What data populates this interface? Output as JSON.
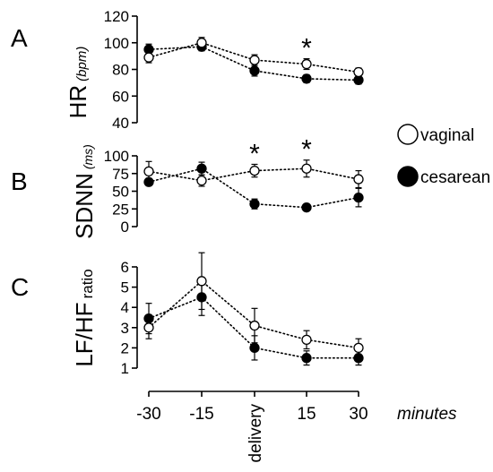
{
  "legend": {
    "entries": [
      {
        "label": "vaginal",
        "fill": "#ffffff"
      },
      {
        "label": "cesarean",
        "fill": "#000000"
      }
    ]
  },
  "x_axis": {
    "categories": [
      "-30",
      "-15",
      "delivery",
      "15",
      "30"
    ],
    "unit_label": "minutes"
  },
  "chart_data": [
    {
      "type": "line",
      "panel_letter": "A",
      "ylabel_main": "HR",
      "ylabel_sub": "(bpm)",
      "ylim": [
        40,
        120
      ],
      "yticks": [
        40,
        60,
        80,
        100,
        120
      ],
      "categories": [
        "-30",
        "-15",
        "delivery",
        "15",
        "30"
      ],
      "series": [
        {
          "name": "vaginal",
          "values": [
            89,
            100,
            87,
            84,
            78
          ],
          "errors": [
            4,
            4,
            4,
            4,
            3
          ]
        },
        {
          "name": "cesarean",
          "values": [
            95,
            97,
            79,
            73,
            72
          ],
          "errors": [
            4,
            3,
            4,
            3,
            3
          ]
        }
      ],
      "significance": [
        "",
        "",
        "",
        "*",
        ""
      ]
    },
    {
      "type": "line",
      "panel_letter": "B",
      "ylabel_main": "SDNN",
      "ylabel_sub": "(ms)",
      "ylim": [
        0,
        100
      ],
      "yticks": [
        0,
        25,
        50,
        75,
        100
      ],
      "categories": [
        "-30",
        "-15",
        "delivery",
        "15",
        "30"
      ],
      "series": [
        {
          "name": "vaginal",
          "values": [
            78,
            65,
            79,
            82,
            67
          ],
          "errors": [
            14,
            8,
            9,
            12,
            12
          ]
        },
        {
          "name": "cesarean",
          "values": [
            63,
            82,
            32,
            27,
            41
          ],
          "errors": [
            5,
            9,
            7,
            3,
            13
          ]
        }
      ],
      "significance": [
        "",
        "",
        "*",
        "*",
        ""
      ]
    },
    {
      "type": "line",
      "panel_letter": "C",
      "ylabel_main": "LF/HF",
      "ylabel_sub": "ratio",
      "ylim": [
        1,
        6
      ],
      "yticks": [
        1,
        2,
        3,
        4,
        5,
        6
      ],
      "categories": [
        "-30",
        "-15",
        "delivery",
        "15",
        "30"
      ],
      "series": [
        {
          "name": "vaginal",
          "values": [
            3.0,
            5.3,
            3.1,
            2.4,
            2.0
          ],
          "errors": [
            0.55,
            1.4,
            0.85,
            0.45,
            0.45
          ]
        },
        {
          "name": "cesarean",
          "values": [
            3.45,
            4.5,
            2.0,
            1.5,
            1.5
          ],
          "errors": [
            0.75,
            0.9,
            0.6,
            0.35,
            0.35
          ]
        }
      ],
      "significance": [
        "",
        "",
        "",
        "",
        ""
      ]
    }
  ]
}
